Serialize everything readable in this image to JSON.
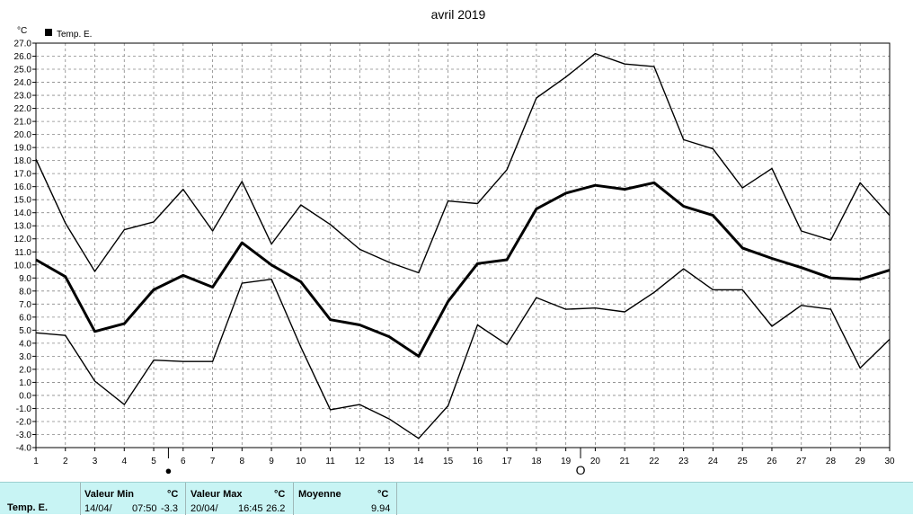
{
  "chart_data": {
    "type": "line",
    "title": "avril 2019",
    "ylabel": "°C",
    "ylim": [
      -4.0,
      27.0
    ],
    "x": [
      1,
      2,
      3,
      4,
      5,
      6,
      7,
      8,
      9,
      10,
      11,
      12,
      13,
      14,
      15,
      16,
      17,
      18,
      19,
      20,
      21,
      22,
      23,
      24,
      25,
      26,
      27,
      28,
      29,
      30
    ],
    "xlim": [
      1,
      30
    ],
    "legend": {
      "label": "Temp. E.",
      "placement": "top-left"
    },
    "grid": true,
    "moon_markers": [
      {
        "x": 5.5,
        "phase": "new-moon",
        "symbol": "●"
      },
      {
        "x": 19.5,
        "phase": "full-moon",
        "symbol": "O"
      }
    ],
    "series": [
      {
        "role": "max",
        "values": [
          18.1,
          13.2,
          9.5,
          12.7,
          13.3,
          15.8,
          12.6,
          16.4,
          11.6,
          14.6,
          13.1,
          11.2,
          10.2,
          9.4,
          14.9,
          14.7,
          17.3,
          22.8,
          24.4,
          26.2,
          25.4,
          25.2,
          19.6,
          18.9,
          15.9,
          17.4,
          12.6,
          11.9,
          16.3,
          13.8
        ]
      },
      {
        "role": "mean",
        "values": [
          10.4,
          9.1,
          4.9,
          5.5,
          8.1,
          9.2,
          8.3,
          11.7,
          10.0,
          8.7,
          5.8,
          5.4,
          4.5,
          3.0,
          7.2,
          10.1,
          10.4,
          14.3,
          15.5,
          16.1,
          15.8,
          16.3,
          14.5,
          13.8,
          11.3,
          10.5,
          9.8,
          9.0,
          8.9,
          9.6
        ]
      },
      {
        "role": "min",
        "values": [
          4.8,
          4.6,
          1.1,
          -0.7,
          2.7,
          2.6,
          2.6,
          8.6,
          8.9,
          3.7,
          -1.1,
          -0.7,
          -1.8,
          -3.3,
          -0.8,
          5.4,
          3.9,
          7.5,
          6.6,
          6.7,
          6.4,
          7.9,
          9.7,
          8.1,
          8.1,
          5.3,
          6.9,
          6.6,
          2.1,
          4.3
        ]
      }
    ]
  },
  "footer": {
    "series_name": "Temp. E.",
    "min": {
      "header": "Valeur Min",
      "unit": "°C",
      "date": "14/04/",
      "time": "07:50",
      "value": "-3.3"
    },
    "max": {
      "header": "Valeur Max",
      "unit": "°C",
      "date": "20/04/",
      "time": "16:45",
      "value": "26.2"
    },
    "mean": {
      "header": "Moyenne",
      "unit": "°C",
      "value": "9.94"
    }
  }
}
